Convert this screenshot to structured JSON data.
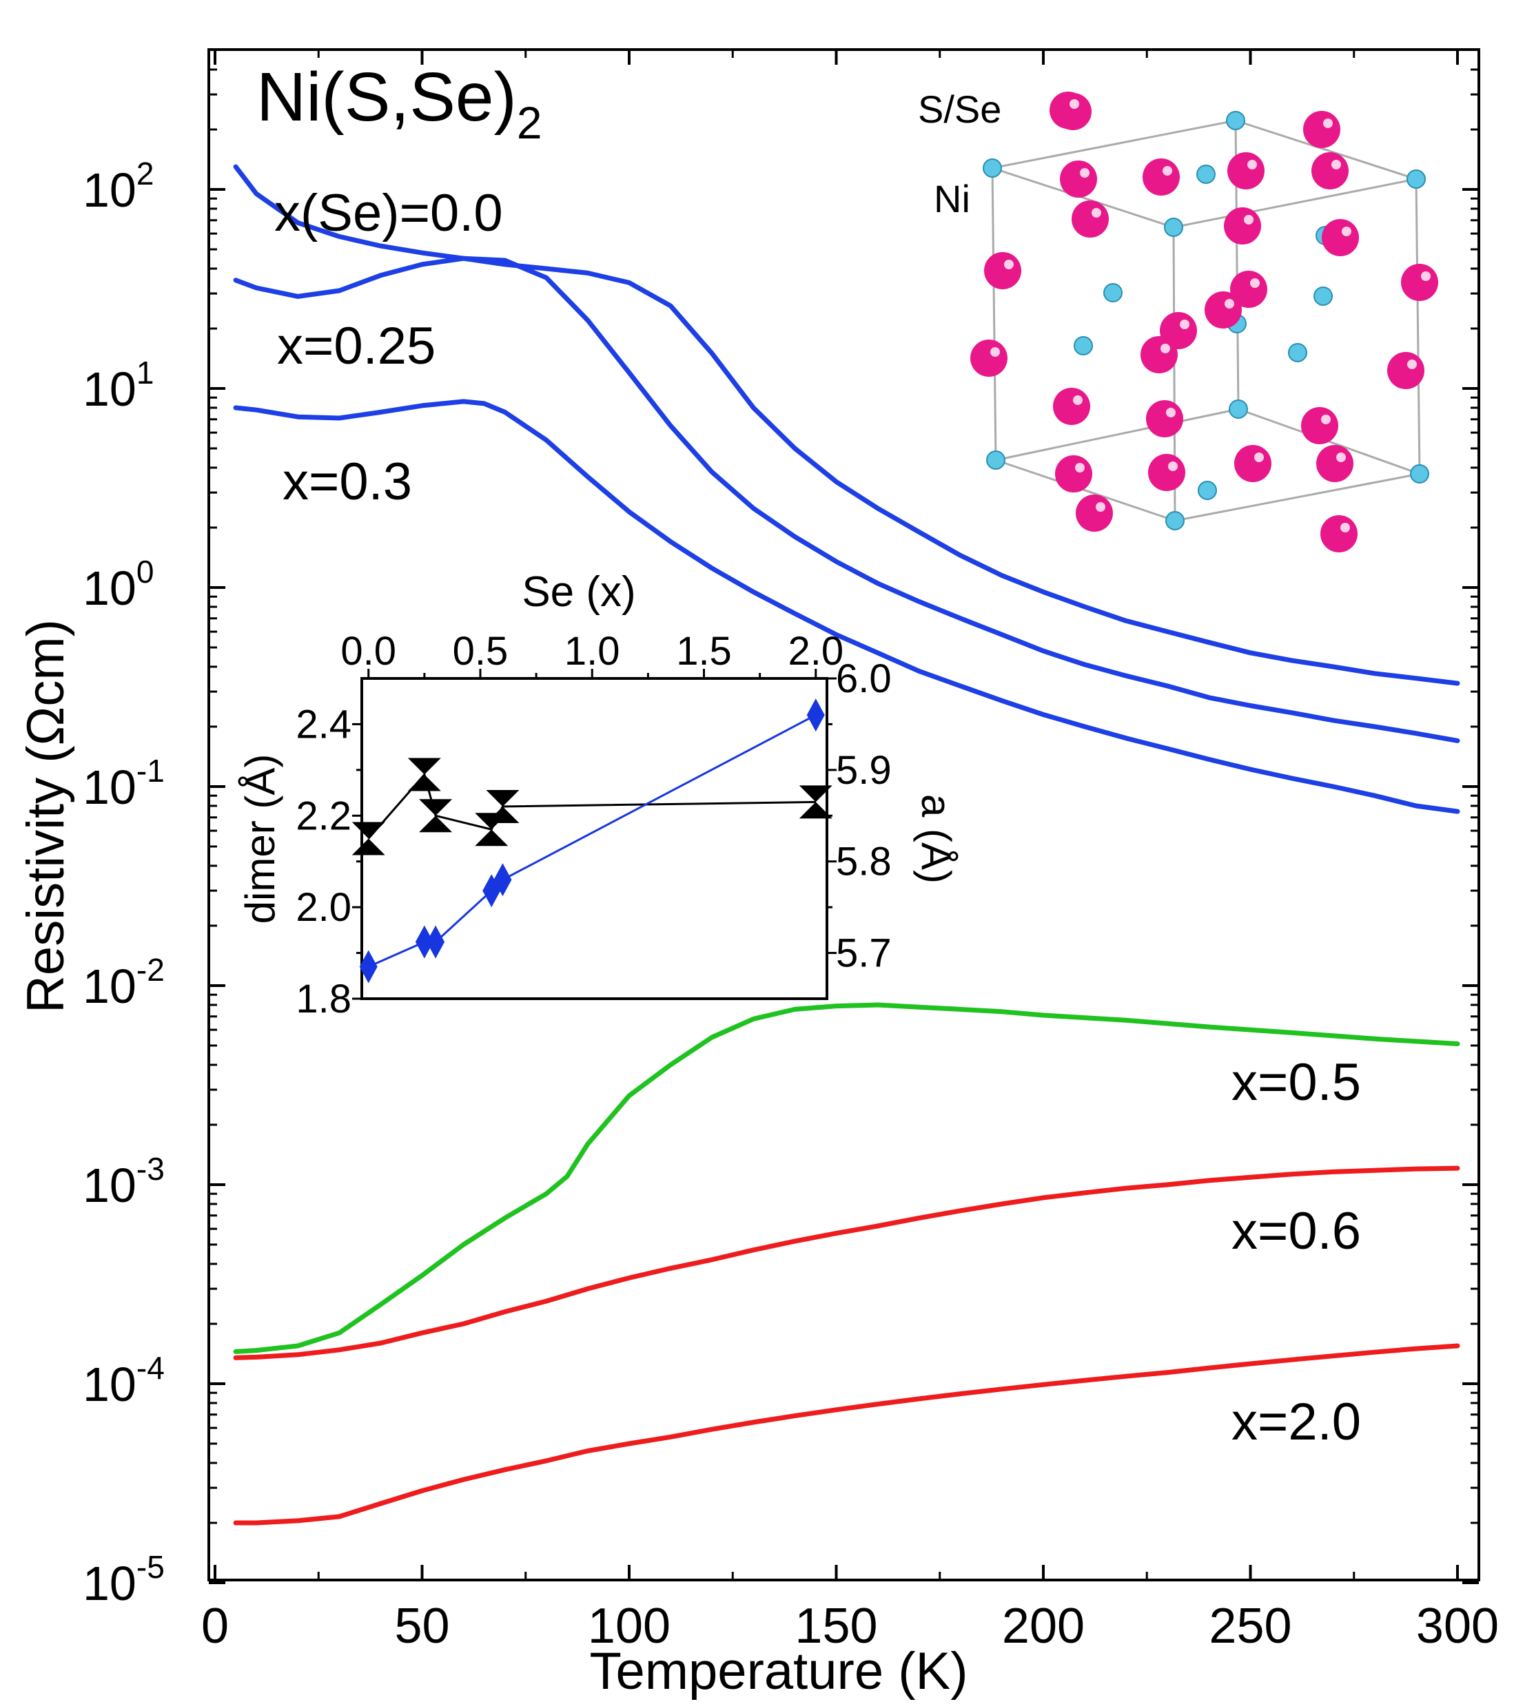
{
  "chart_data": {
    "type": "line",
    "title": "Ni(S,Se)",
    "title_subscript": "2",
    "xlabel": "Temperature (K)",
    "ylabel": "Resistivity (Ωcm)",
    "yscale": "log",
    "xlim": [
      0,
      305
    ],
    "ylim": [
      1e-05,
      500
    ],
    "x_ticks": [
      0,
      50,
      100,
      150,
      200,
      250,
      300
    ],
    "x_tick_labels": [
      "0",
      "50",
      "100",
      "150",
      "200",
      "250",
      "300"
    ],
    "y_ticks": [
      {
        "value": 1e-05,
        "base": "10",
        "exp": "-5"
      },
      {
        "value": 0.0001,
        "base": "10",
        "exp": "-4"
      },
      {
        "value": 0.001,
        "base": "10",
        "exp": "-3"
      },
      {
        "value": 0.01,
        "base": "10",
        "exp": "-2"
      },
      {
        "value": 0.1,
        "base": "10",
        "exp": "-1"
      },
      {
        "value": 1,
        "base": "10",
        "exp": "0"
      },
      {
        "value": 10,
        "base": "10",
        "exp": "1"
      },
      {
        "value": 100,
        "base": "10",
        "exp": "2"
      }
    ],
    "series": [
      {
        "name": "x(Se)=0.0",
        "color": "#1d3fe6",
        "x": [
          5,
          10,
          20,
          30,
          40,
          50,
          60,
          70,
          80,
          90,
          100,
          110,
          120,
          130,
          140,
          150,
          160,
          170,
          180,
          190,
          200,
          210,
          220,
          230,
          240,
          250,
          260,
          270,
          280,
          290,
          300
        ],
        "y": [
          130,
          95,
          68,
          58,
          52,
          48,
          45,
          42,
          40,
          38,
          34,
          26,
          15,
          8,
          5,
          3.4,
          2.5,
          1.9,
          1.45,
          1.15,
          0.95,
          0.8,
          0.68,
          0.6,
          0.53,
          0.47,
          0.43,
          0.4,
          0.37,
          0.35,
          0.33
        ]
      },
      {
        "name": "x=0.25",
        "color": "#1d3fe6",
        "x": [
          5,
          10,
          20,
          30,
          40,
          50,
          60,
          70,
          80,
          90,
          100,
          110,
          120,
          130,
          140,
          150,
          160,
          170,
          180,
          190,
          200,
          210,
          220,
          230,
          240,
          250,
          260,
          270,
          280,
          290,
          300
        ],
        "y": [
          35,
          32,
          29,
          31,
          37,
          42,
          45,
          44,
          36,
          22,
          12,
          6.5,
          3.8,
          2.5,
          1.8,
          1.35,
          1.05,
          0.85,
          0.7,
          0.58,
          0.48,
          0.41,
          0.36,
          0.32,
          0.28,
          0.255,
          0.235,
          0.215,
          0.2,
          0.185,
          0.17
        ]
      },
      {
        "name": "x=0.3",
        "color": "#1d3fe6",
        "x": [
          5,
          10,
          20,
          30,
          40,
          50,
          60,
          65,
          70,
          80,
          90,
          100,
          110,
          120,
          130,
          140,
          150,
          160,
          170,
          180,
          190,
          200,
          210,
          220,
          230,
          240,
          250,
          260,
          270,
          280,
          290,
          300
        ],
        "y": [
          8,
          7.8,
          7.2,
          7.1,
          7.6,
          8.2,
          8.6,
          8.4,
          7.6,
          5.5,
          3.6,
          2.4,
          1.7,
          1.25,
          0.95,
          0.74,
          0.58,
          0.47,
          0.38,
          0.32,
          0.27,
          0.23,
          0.2,
          0.175,
          0.155,
          0.137,
          0.122,
          0.11,
          0.1,
          0.09,
          0.08,
          0.075
        ]
      },
      {
        "name": "x=0.5",
        "color": "#1fc21f",
        "x": [
          5,
          10,
          20,
          30,
          40,
          50,
          60,
          70,
          80,
          85,
          90,
          100,
          110,
          120,
          130,
          140,
          150,
          160,
          170,
          180,
          190,
          200,
          220,
          240,
          260,
          280,
          300
        ],
        "y": [
          0.000145,
          0.000147,
          0.000155,
          0.00018,
          0.00025,
          0.00035,
          0.0005,
          0.00068,
          0.0009,
          0.0011,
          0.0016,
          0.0028,
          0.004,
          0.0055,
          0.0068,
          0.0076,
          0.0079,
          0.008,
          0.0078,
          0.0076,
          0.0074,
          0.0071,
          0.0067,
          0.0062,
          0.0058,
          0.0054,
          0.0051
        ]
      },
      {
        "name": "x=0.6",
        "color": "#ee1c1c",
        "x": [
          5,
          10,
          20,
          30,
          40,
          50,
          60,
          70,
          80,
          90,
          100,
          110,
          120,
          130,
          140,
          150,
          160,
          170,
          180,
          190,
          200,
          210,
          220,
          230,
          240,
          250,
          260,
          270,
          280,
          290,
          300
        ],
        "y": [
          0.000135,
          0.000136,
          0.00014,
          0.000148,
          0.00016,
          0.00018,
          0.0002,
          0.00023,
          0.00026,
          0.0003,
          0.00034,
          0.00038,
          0.00042,
          0.00047,
          0.00052,
          0.00057,
          0.00062,
          0.00068,
          0.00074,
          0.0008,
          0.00086,
          0.00091,
          0.00096,
          0.001,
          0.00105,
          0.00109,
          0.00113,
          0.00116,
          0.00118,
          0.0012,
          0.00121
        ]
      },
      {
        "name": "x=2.0",
        "color": "#ee1c1c",
        "x": [
          5,
          10,
          20,
          30,
          40,
          50,
          60,
          70,
          80,
          90,
          100,
          110,
          120,
          130,
          140,
          150,
          160,
          170,
          180,
          190,
          200,
          210,
          220,
          230,
          240,
          250,
          260,
          270,
          280,
          290,
          300
        ],
        "y": [
          2e-05,
          2e-05,
          2.05e-05,
          2.15e-05,
          2.5e-05,
          2.9e-05,
          3.3e-05,
          3.7e-05,
          4.1e-05,
          4.6e-05,
          5e-05,
          5.4e-05,
          5.9e-05,
          6.4e-05,
          6.9e-05,
          7.4e-05,
          7.9e-05,
          8.4e-05,
          8.9e-05,
          9.4e-05,
          9.9e-05,
          0.000104,
          0.000109,
          0.000114,
          0.00012,
          0.000126,
          0.000132,
          0.000138,
          0.000144,
          0.00015,
          0.000155
        ]
      }
    ],
    "series_labels": [
      {
        "text": "x(Se)=0.0",
        "series": "x(Se)=0.0"
      },
      {
        "text": "x=0.25",
        "series": "x=0.25"
      },
      {
        "text": "x=0.3",
        "series": "x=0.3"
      },
      {
        "text": "x=0.5",
        "series": "x=0.5"
      },
      {
        "text": "x=0.6",
        "series": "x=0.6"
      },
      {
        "text": "x=2.0",
        "series": "x=2.0"
      }
    ],
    "inset_structure": {
      "labels": {
        "chalcogen": "S/Se",
        "metal": "Ni"
      },
      "colors": {
        "chalcogen": "#e8178a",
        "metal": "#5cc6e6",
        "cell_edge": "#aaaaaa"
      }
    },
    "inset_chart": {
      "type": "scatter",
      "xlabel": "Se (x)",
      "ylabel_left": "dimer (Å)",
      "ylabel_right": "a (Å)",
      "xlim": [
        -0.03,
        2.05
      ],
      "ylim_left": [
        1.8,
        2.5
      ],
      "ylim_right": [
        5.65,
        6.0
      ],
      "x_ticks": [
        "0.0",
        "0.5",
        "1.0",
        "1.5",
        "2.0"
      ],
      "y_left_ticks": [
        "1.8",
        "2.0",
        "2.2",
        "2.4"
      ],
      "y_right_ticks": [
        "5.7",
        "5.8",
        "5.9",
        "6.0"
      ],
      "series": [
        {
          "name": "dimer",
          "axis": "left",
          "color": "#000000",
          "marker": "hourglass",
          "x": [
            0.0,
            0.25,
            0.3,
            0.55,
            0.6,
            2.0
          ],
          "y": [
            2.15,
            2.29,
            2.2,
            2.17,
            2.22,
            2.23
          ]
        },
        {
          "name": "a",
          "axis": "right",
          "color": "#1736e0",
          "marker": "diamond",
          "x": [
            0.0,
            0.25,
            0.3,
            0.55,
            0.6,
            2.0
          ],
          "y": [
            5.685,
            5.712,
            5.712,
            5.768,
            5.78,
            5.96
          ]
        }
      ]
    }
  }
}
